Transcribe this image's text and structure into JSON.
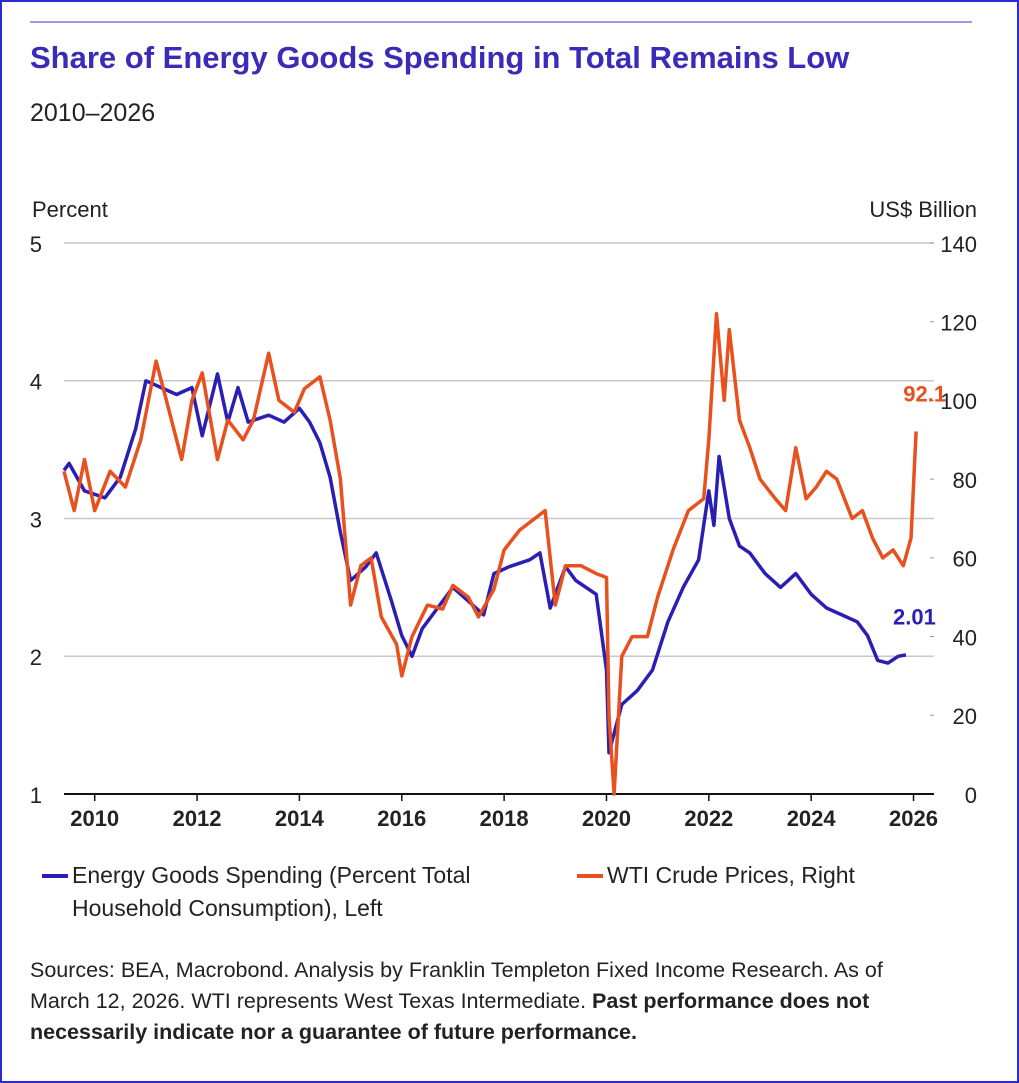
{
  "chart_data": {
    "type": "line",
    "title": "Share of Energy Goods Spending in Total Remains Low",
    "subtitle": "2010–2026",
    "y_label": "Percent",
    "y2_label": "US$ Billion",
    "xlim": [
      2009.4,
      2026.4
    ],
    "xticks": [
      2010,
      2012,
      2014,
      2016,
      2018,
      2020,
      2022,
      2024,
      2026
    ],
    "ylim": [
      1,
      5
    ],
    "yticks": [
      1,
      2,
      3,
      4,
      5
    ],
    "y2lim": [
      0,
      140
    ],
    "y2ticks": [
      0,
      20,
      40,
      60,
      80,
      100,
      120,
      140
    ],
    "grid": true,
    "series": [
      {
        "name": "Energy Goods Spending (Percent Total Household Consumption), Left",
        "color": "#2b1fb3",
        "x": [
          2009.4,
          2009.5,
          2009.8,
          2010.2,
          2010.5,
          2010.8,
          2011.0,
          2011.3,
          2011.6,
          2011.9,
          2012.1,
          2012.4,
          2012.6,
          2012.8,
          2013.0,
          2013.4,
          2013.7,
          2014.0,
          2014.2,
          2014.4,
          2014.6,
          2014.8,
          2015.0,
          2015.3,
          2015.5,
          2015.8,
          2016.0,
          2016.2,
          2016.4,
          2016.7,
          2017.0,
          2017.3,
          2017.6,
          2017.8,
          2018.1,
          2018.5,
          2018.7,
          2018.9,
          2019.2,
          2019.4,
          2019.8,
          2020.0,
          2020.05,
          2020.3,
          2020.6,
          2020.9,
          2021.2,
          2021.5,
          2021.8,
          2022.0,
          2022.1,
          2022.2,
          2022.4,
          2022.6,
          2022.8,
          2023.1,
          2023.4,
          2023.7,
          2024.0,
          2024.3,
          2024.6,
          2024.9,
          2025.1,
          2025.3,
          2025.5,
          2025.7,
          2025.85
        ],
        "values": [
          3.35,
          3.4,
          3.2,
          3.15,
          3.3,
          3.65,
          4.0,
          3.95,
          3.9,
          3.95,
          3.6,
          4.05,
          3.7,
          3.95,
          3.7,
          3.75,
          3.7,
          3.8,
          3.7,
          3.55,
          3.3,
          2.9,
          2.55,
          2.65,
          2.75,
          2.4,
          2.15,
          2.0,
          2.2,
          2.35,
          2.5,
          2.4,
          2.3,
          2.6,
          2.65,
          2.7,
          2.75,
          2.35,
          2.65,
          2.55,
          2.45,
          1.9,
          1.3,
          1.65,
          1.75,
          1.9,
          2.25,
          2.5,
          2.7,
          3.2,
          2.95,
          3.45,
          3.0,
          2.8,
          2.75,
          2.6,
          2.5,
          2.6,
          2.45,
          2.35,
          2.3,
          2.25,
          2.15,
          1.97,
          1.95,
          2.0,
          2.01
        ]
      },
      {
        "name": "WTI Crude Prices, Right",
        "color": "#e8501e",
        "axis": "y2",
        "x": [
          2009.4,
          2009.6,
          2009.8,
          2010.0,
          2010.3,
          2010.6,
          2010.9,
          2011.2,
          2011.4,
          2011.7,
          2011.9,
          2012.1,
          2012.4,
          2012.6,
          2012.9,
          2013.1,
          2013.4,
          2013.6,
          2013.9,
          2014.1,
          2014.4,
          2014.6,
          2014.8,
          2015.0,
          2015.2,
          2015.4,
          2015.6,
          2015.9,
          2016.0,
          2016.2,
          2016.5,
          2016.8,
          2017.0,
          2017.3,
          2017.5,
          2017.8,
          2018.0,
          2018.3,
          2018.6,
          2018.8,
          2019.0,
          2019.2,
          2019.5,
          2019.8,
          2020.0,
          2020.05,
          2020.15,
          2020.3,
          2020.5,
          2020.8,
          2021.0,
          2021.3,
          2021.6,
          2021.9,
          2022.0,
          2022.15,
          2022.3,
          2022.4,
          2022.6,
          2022.8,
          2023.0,
          2023.3,
          2023.5,
          2023.7,
          2023.9,
          2024.1,
          2024.3,
          2024.5,
          2024.8,
          2025.0,
          2025.2,
          2025.4,
          2025.6,
          2025.8,
          2025.95,
          2026.05
        ],
        "values": [
          82,
          72,
          85,
          72,
          82,
          78,
          90,
          110,
          100,
          85,
          100,
          107,
          85,
          95,
          90,
          95,
          112,
          100,
          97,
          103,
          106,
          95,
          80,
          48,
          58,
          60,
          45,
          38,
          30,
          40,
          48,
          47,
          53,
          50,
          45,
          52,
          62,
          67,
          70,
          72,
          48,
          58,
          58,
          56,
          55,
          20,
          0,
          35,
          40,
          40,
          50,
          62,
          72,
          75,
          90,
          122,
          100,
          118,
          95,
          88,
          80,
          75,
          72,
          88,
          75,
          78,
          82,
          80,
          70,
          72,
          65,
          60,
          62,
          58,
          65,
          92.1
        ]
      }
    ],
    "source": "Sources: BEA, Macrobond. Analysis by Franklin Templeton Fixed Income Research. As of March 12, 2026. WTI represents West Texas Intermediate.",
    "disclaimer": "Past performance does not necessarily indicate nor a guarantee of future performance."
  }
}
